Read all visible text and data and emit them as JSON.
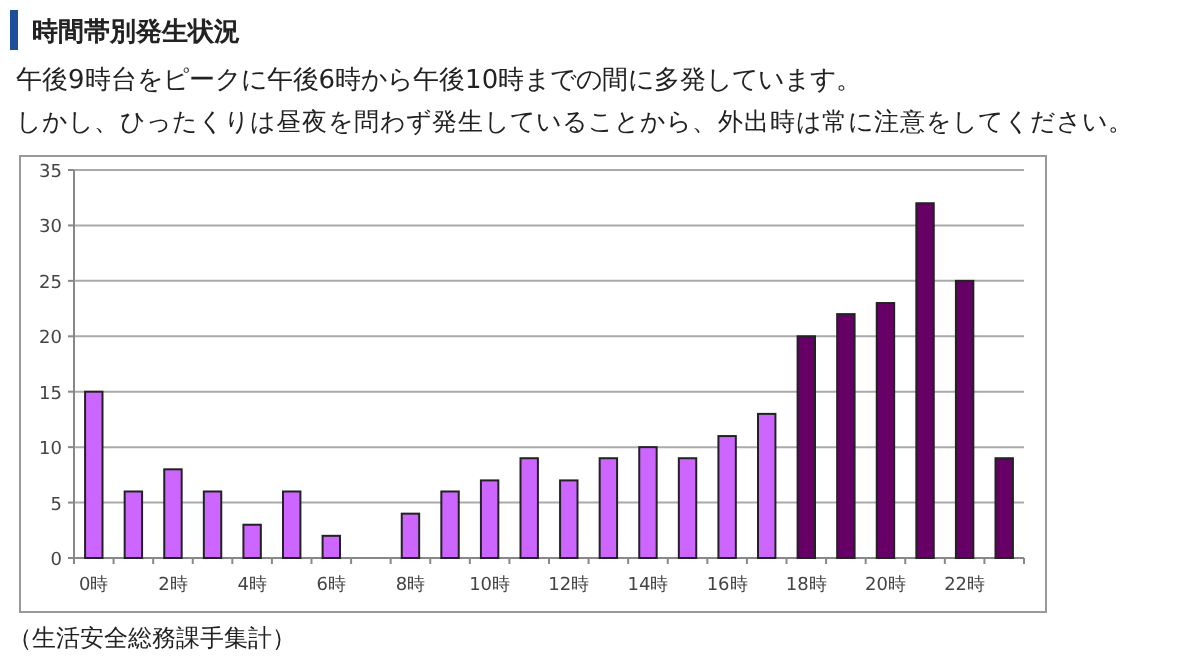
{
  "chart_data": {
    "type": "bar",
    "title": "時間帯別発生状況",
    "subtitle": "午後9時台をピークに午後6時から午後10時までの間に多発しています。",
    "categories": [
      "0時",
      null,
      "2時",
      null,
      "4時",
      null,
      "6時",
      null,
      "8時",
      null,
      "10時",
      null,
      "12時",
      null,
      "14時",
      null,
      "16時",
      null,
      "18時",
      null,
      "20時",
      null,
      "22時",
      null
    ],
    "values": [
      15,
      6,
      8,
      6,
      3,
      6,
      2,
      0,
      4,
      6,
      7,
      9,
      7,
      9,
      10,
      9,
      11,
      13,
      20,
      22,
      23,
      32,
      25,
      9
    ],
    "colors": [
      "#cc66ff",
      "#cc66ff",
      "#cc66ff",
      "#cc66ff",
      "#cc66ff",
      "#cc66ff",
      "#cc66ff",
      "#cc66ff",
      "#cc66ff",
      "#cc66ff",
      "#cc66ff",
      "#cc66ff",
      "#cc66ff",
      "#cc66ff",
      "#cc66ff",
      "#cc66ff",
      "#cc66ff",
      "#cc66ff",
      "#660066",
      "#660066",
      "#660066",
      "#660066",
      "#660066",
      "#660066"
    ],
    "ylim": [
      0,
      35
    ],
    "yticks": [
      0,
      5,
      10,
      15,
      20,
      25,
      30,
      35
    ],
    "grid": "y",
    "annotations": [
      "しかし、ひったくりは昼夜を問わず発生していることから、外出時は常に注意をしてください。",
      "（生活安全総務課手集計）"
    ]
  }
}
